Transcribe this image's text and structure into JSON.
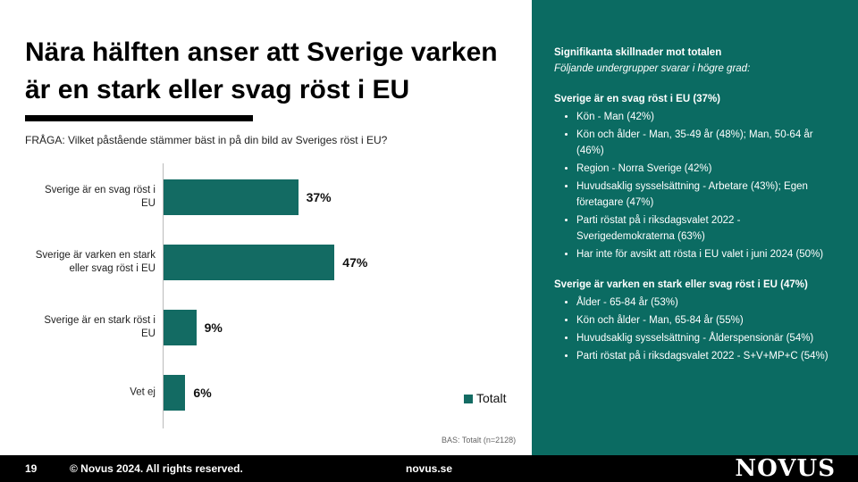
{
  "chart_data": {
    "type": "bar",
    "orientation": "horizontal",
    "title": "Nära hälften anser att Sverige varken är en stark eller svag röst i EU",
    "subtitle": "FRÅGA: Vilket påstående stämmer bäst in på din bild av Sveriges röst i EU?",
    "categories": [
      "Sverige är en svag röst i EU",
      "Sverige är varken en stark eller svag röst i EU",
      "Sverige är en stark röst i EU",
      "Vet ej"
    ],
    "series": [
      {
        "name": "Totalt",
        "color": "#136b63",
        "values": [
          37,
          47,
          9,
          6
        ],
        "value_labels": [
          "37%",
          "47%",
          "9%",
          "6%"
        ]
      }
    ],
    "note": "BAS: Totalt (n=2128)"
  },
  "panel": {
    "heading": "Signifikanta skillnader mot totalen",
    "subheading": "Följande undergrupper svarar i högre grad:",
    "sections": [
      {
        "title": "Sverige är en svag röst i EU (37%)",
        "items": [
          "Kön - Man (42%)",
          "Kön och ålder - Man, 35-49 år (48%); Man, 50-64 år (46%)",
          "Region - Norra Sverige (42%)",
          "Huvudsaklig sysselsättning - Arbetare (43%); Egen företagare (47%)",
          "Parti röstat på i riksdagsvalet 2022 - Sverigedemokraterna (63%)",
          "Har inte för avsikt att rösta i EU valet i juni 2024 (50%)"
        ]
      },
      {
        "title": "Sverige är varken en stark eller svag röst i EU (47%)",
        "items": [
          "Ålder - 65-84 år (53%)",
          "Kön och ålder - Man, 65-84 år (55%)",
          "Huvudsaklig sysselsättning - Ålderspensionär (54%)",
          "Parti röstat på i riksdagsvalet 2022 - S+V+MP+C (54%)"
        ]
      }
    ]
  },
  "footer": {
    "page": "19",
    "copyright": "© Novus 2024. All rights reserved.",
    "site": "novus.se",
    "logo": "NOVUS"
  }
}
